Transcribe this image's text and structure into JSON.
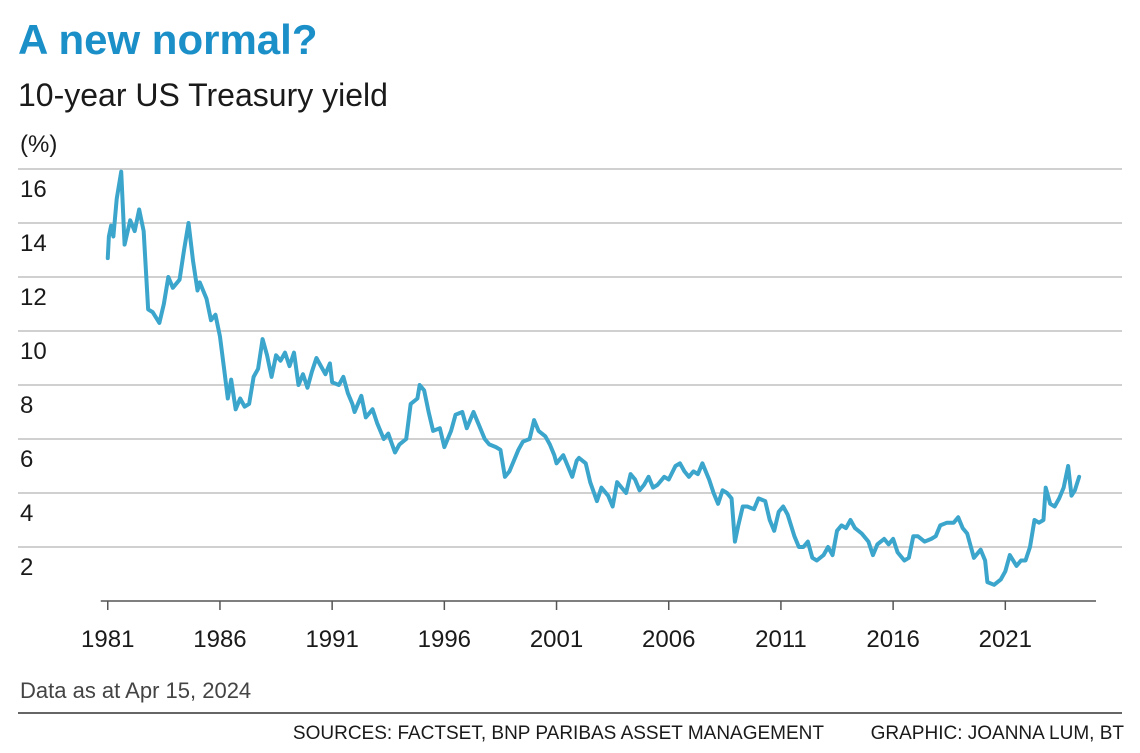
{
  "chart_data": {
    "type": "line",
    "title": "A new normal?",
    "subtitle": "10-year US Treasury yield",
    "y_label": "(%)",
    "note": "Data as at Apr 15, 2024",
    "sources": "SOURCES: FACTSET, BNP PARIBAS ASSET MANAGEMENT",
    "credit": "GRAPHIC: JOANNA LUM, BT",
    "color": "#3ba5cc",
    "grid": true,
    "xlim": [
      1977,
      2026.2
    ],
    "xticks": [
      1981,
      1986,
      1991,
      1996,
      2001,
      2006,
      2011,
      2016,
      2021
    ],
    "ylim": [
      0,
      16
    ],
    "yticks": [
      2,
      4,
      6,
      8,
      10,
      12,
      14,
      16
    ],
    "x": [
      1981.0,
      1981.05,
      1981.15,
      1981.25,
      1981.4,
      1981.6,
      1981.75,
      1982.0,
      1982.2,
      1982.4,
      1982.6,
      1982.8,
      1983.0,
      1983.3,
      1983.5,
      1983.7,
      1983.9,
      1984.2,
      1984.4,
      1984.6,
      1984.8,
      1985.0,
      1985.1,
      1985.4,
      1985.6,
      1985.8,
      1986.0,
      1986.2,
      1986.35,
      1986.5,
      1986.7,
      1986.9,
      1987.1,
      1987.3,
      1987.5,
      1987.7,
      1987.9,
      1988.1,
      1988.3,
      1988.5,
      1988.7,
      1988.9,
      1989.1,
      1989.3,
      1989.5,
      1989.7,
      1989.9,
      1990.1,
      1990.3,
      1990.5,
      1990.7,
      1990.9,
      1991.0,
      1991.3,
      1991.5,
      1991.7,
      1991.9,
      1992.0,
      1992.3,
      1992.5,
      1992.8,
      1993.0,
      1993.3,
      1993.5,
      1993.8,
      1994.0,
      1994.3,
      1994.5,
      1994.8,
      1994.9,
      1995.1,
      1995.3,
      1995.5,
      1995.8,
      1996.0,
      1996.3,
      1996.5,
      1996.8,
      1997.0,
      1997.3,
      1997.5,
      1997.8,
      1998.0,
      1998.3,
      1998.5,
      1998.7,
      1998.9,
      1999.1,
      1999.3,
      1999.5,
      1999.8,
      2000.0,
      2000.2,
      2000.5,
      2000.7,
      2000.9,
      2001.0,
      2001.3,
      2001.5,
      2001.7,
      2001.9,
      2002.0,
      2002.3,
      2002.5,
      2002.8,
      2003.0,
      2003.3,
      2003.5,
      2003.7,
      2003.9,
      2004.1,
      2004.3,
      2004.5,
      2004.7,
      2004.9,
      2005.1,
      2005.3,
      2005.5,
      2005.8,
      2006.0,
      2006.3,
      2006.5,
      2006.7,
      2006.9,
      2007.1,
      2007.3,
      2007.5,
      2007.8,
      2008.0,
      2008.2,
      2008.4,
      2008.6,
      2008.8,
      2008.95,
      2009.1,
      2009.3,
      2009.5,
      2009.8,
      2010.0,
      2010.3,
      2010.5,
      2010.7,
      2010.9,
      2011.1,
      2011.3,
      2011.6,
      2011.8,
      2012.0,
      2012.2,
      2012.4,
      2012.6,
      2012.9,
      2013.1,
      2013.3,
      2013.5,
      2013.7,
      2013.9,
      2014.1,
      2014.3,
      2014.6,
      2014.9,
      2015.1,
      2015.3,
      2015.6,
      2015.8,
      2016.0,
      2016.2,
      2016.5,
      2016.7,
      2016.9,
      2017.1,
      2017.4,
      2017.7,
      2017.9,
      2018.1,
      2018.4,
      2018.7,
      2018.9,
      2019.1,
      2019.3,
      2019.6,
      2019.9,
      2020.1,
      2020.2,
      2020.5,
      2020.8,
      2021.0,
      2021.2,
      2021.5,
      2021.7,
      2021.9,
      2022.1,
      2022.3,
      2022.5,
      2022.7,
      2022.8,
      2023.0,
      2023.2,
      2023.4,
      2023.6,
      2023.8,
      2023.95,
      2024.1,
      2024.29
    ],
    "values": [
      12.7,
      13.5,
      13.9,
      13.5,
      14.9,
      15.9,
      13.2,
      14.1,
      13.7,
      14.5,
      13.7,
      10.8,
      10.7,
      10.3,
      11.0,
      12.0,
      11.6,
      11.9,
      13.0,
      14.0,
      12.6,
      11.5,
      11.8,
      11.2,
      10.4,
      10.6,
      9.8,
      8.5,
      7.5,
      8.2,
      7.1,
      7.5,
      7.2,
      7.3,
      8.3,
      8.6,
      9.7,
      9.1,
      8.3,
      9.1,
      8.9,
      9.2,
      8.7,
      9.2,
      8.0,
      8.4,
      7.9,
      8.5,
      9.0,
      8.7,
      8.4,
      8.8,
      8.1,
      8.0,
      8.3,
      7.7,
      7.3,
      7.0,
      7.6,
      6.8,
      7.1,
      6.6,
      6.0,
      6.2,
      5.5,
      5.8,
      6.0,
      7.3,
      7.5,
      8.0,
      7.8,
      7.0,
      6.3,
      6.4,
      5.7,
      6.3,
      6.9,
      7.0,
      6.4,
      7.0,
      6.6,
      6.0,
      5.8,
      5.7,
      5.6,
      4.6,
      4.8,
      5.2,
      5.6,
      5.9,
      6.0,
      6.7,
      6.3,
      6.1,
      5.8,
      5.4,
      5.1,
      5.4,
      5.0,
      4.6,
      5.2,
      5.3,
      5.1,
      4.4,
      3.7,
      4.2,
      3.9,
      3.5,
      4.4,
      4.2,
      4.0,
      4.7,
      4.5,
      4.1,
      4.3,
      4.6,
      4.2,
      4.3,
      4.6,
      4.5,
      5.0,
      5.1,
      4.8,
      4.6,
      4.8,
      4.7,
      5.1,
      4.5,
      4.0,
      3.6,
      4.1,
      4.0,
      3.8,
      2.2,
      2.8,
      3.5,
      3.5,
      3.4,
      3.8,
      3.7,
      3.0,
      2.6,
      3.3,
      3.5,
      3.2,
      2.4,
      2.0,
      2.0,
      2.2,
      1.6,
      1.5,
      1.7,
      2.0,
      1.7,
      2.6,
      2.8,
      2.7,
      3.0,
      2.7,
      2.5,
      2.2,
      1.7,
      2.1,
      2.3,
      2.1,
      2.3,
      1.8,
      1.5,
      1.6,
      2.4,
      2.4,
      2.2,
      2.3,
      2.4,
      2.8,
      2.9,
      2.9,
      3.1,
      2.7,
      2.5,
      1.6,
      1.9,
      1.5,
      0.7,
      0.6,
      0.8,
      1.1,
      1.7,
      1.3,
      1.5,
      1.5,
      2.0,
      3.0,
      2.9,
      3.0,
      4.2,
      3.6,
      3.5,
      3.8,
      4.2,
      5.0,
      3.9,
      4.1,
      4.6
    ]
  }
}
